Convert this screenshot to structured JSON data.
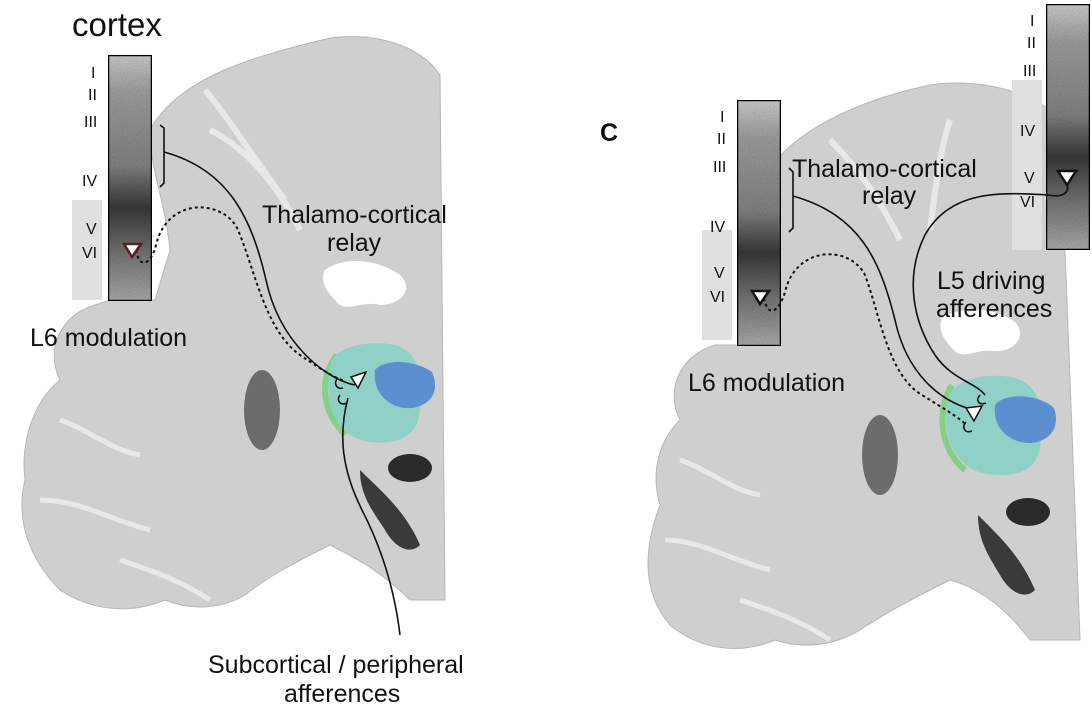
{
  "left_panel": {
    "title": "cortex",
    "layers": [
      "I",
      "II",
      "III",
      "IV",
      "V",
      "VI"
    ],
    "labels": {
      "relay": [
        "Thalamo-cortical",
        "relay"
      ],
      "modulation": "L6 modulation",
      "afferences": [
        "Subcortical / peripheral",
        "afferences"
      ]
    }
  },
  "right_panel": {
    "letter": "C",
    "layers_left_column": [
      "I",
      "II",
      "III",
      "IV",
      "V",
      "VI"
    ],
    "layers_right_column": [
      "I",
      "II",
      "III",
      "IV",
      "V",
      "VI"
    ],
    "labels": {
      "relay": [
        "Thalamo-cortical",
        "relay"
      ],
      "modulation": "L6 modulation",
      "driving": [
        "L5 driving",
        "afferences"
      ]
    }
  },
  "colors": {
    "thalamus_teal": "#8fd1c6",
    "nucleus_blue": "#5b8fd0",
    "rim_green": "#86cf86",
    "brain_gray": "#cfcfcf",
    "ventricle": "#ffffff",
    "neuron_dark": "#5a1d22"
  }
}
